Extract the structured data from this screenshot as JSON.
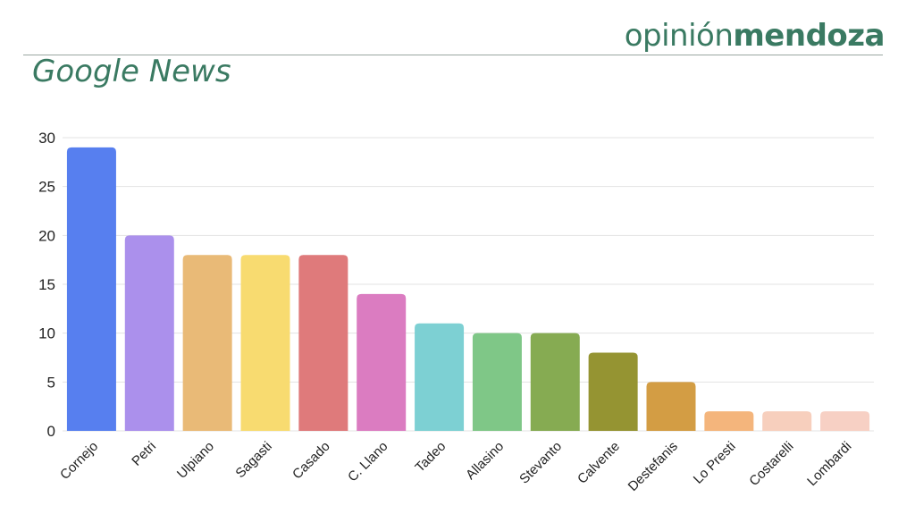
{
  "brand": {
    "part1": "opinión",
    "part2": "mendoza"
  },
  "chart_data": {
    "type": "bar",
    "title": "Google News",
    "xlabel": "",
    "ylabel": "",
    "ylim": [
      0,
      30
    ],
    "yticks": [
      0,
      5,
      10,
      15,
      20,
      25,
      30
    ],
    "grid": true,
    "categories": [
      "Cornejo",
      "Petri",
      "Ulpiano",
      "Sagasti",
      "Casado",
      "C. Llano",
      "Tadeo",
      "Allasino",
      "Stevanto",
      "Calvente",
      "Destefanis",
      "Lo Presti",
      "Costarelli",
      "Lombardi"
    ],
    "values": [
      29,
      20,
      18,
      18,
      18,
      14,
      11,
      10,
      10,
      8,
      5,
      2,
      2,
      2
    ],
    "colors": [
      "#577fef",
      "#ab90ec",
      "#e9ba77",
      "#f8db70",
      "#df7a7b",
      "#db7cc1",
      "#7dd0d3",
      "#7fc787",
      "#86ab52",
      "#959432",
      "#d39d44",
      "#f4b57c",
      "#f7cfbd",
      "#f7d0c4"
    ]
  }
}
